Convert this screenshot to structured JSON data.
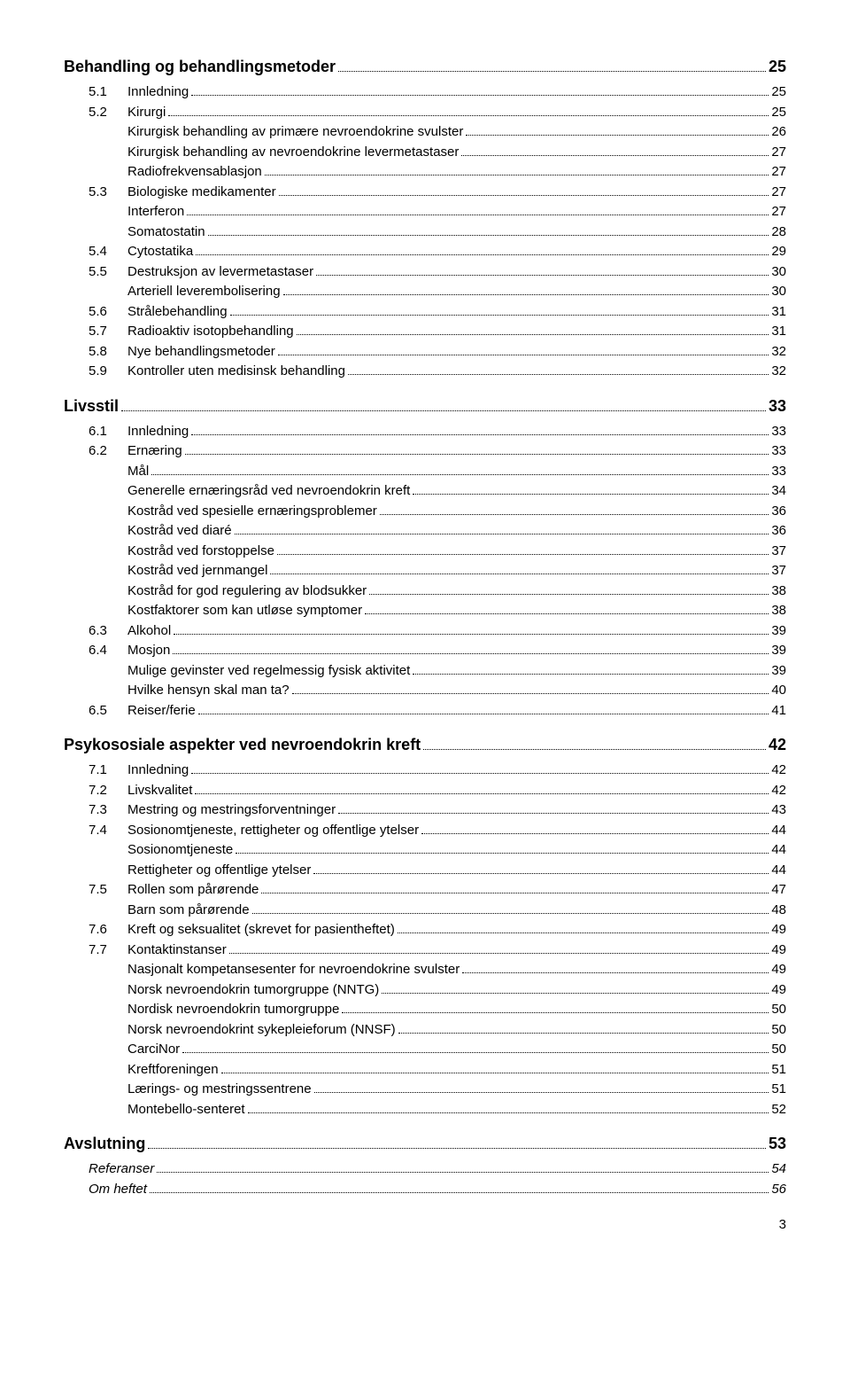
{
  "toc": [
    {
      "level": "h1",
      "text": "Behandling og behandlingsmetoder",
      "page": "25"
    },
    {
      "level": "h2",
      "num": "5.1",
      "text": "Innledning",
      "page": "25"
    },
    {
      "level": "h2",
      "num": "5.2",
      "text": "Kirurgi",
      "page": "25"
    },
    {
      "level": "h3",
      "text": "Kirurgisk behandling av primære nevroendokrine svulster",
      "page": "26"
    },
    {
      "level": "h3",
      "text": "Kirurgisk behandling av nevroendokrine levermetastaser",
      "page": "27"
    },
    {
      "level": "h3",
      "text": "Radiofrekvensablasjon",
      "page": "27"
    },
    {
      "level": "h2",
      "num": "5.3",
      "text": "Biologiske medikamenter",
      "page": "27"
    },
    {
      "level": "h3",
      "text": "Interferon",
      "page": "27"
    },
    {
      "level": "h3",
      "text": "Somatostatin",
      "page": "28"
    },
    {
      "level": "h2",
      "num": "5.4",
      "text": "Cytostatika",
      "page": "29"
    },
    {
      "level": "h2",
      "num": "5.5",
      "text": "Destruksjon av levermetastaser",
      "page": "30"
    },
    {
      "level": "h3",
      "text": "Arteriell leverembolisering",
      "page": "30"
    },
    {
      "level": "h2",
      "num": "5.6",
      "text": "Strålebehandling",
      "page": "31"
    },
    {
      "level": "h2",
      "num": "5.7",
      "text": "Radioaktiv isotopbehandling",
      "page": "31"
    },
    {
      "level": "h2",
      "num": "5.8",
      "text": "Nye behandlingsmetoder",
      "page": "32"
    },
    {
      "level": "h2",
      "num": "5.9",
      "text": "Kontroller uten medisinsk behandling",
      "page": "32"
    },
    {
      "level": "h1",
      "text": "Livsstil",
      "page": "33"
    },
    {
      "level": "h2",
      "num": "6.1",
      "text": "Innledning",
      "page": "33"
    },
    {
      "level": "h2",
      "num": "6.2",
      "text": "Ernæring",
      "page": "33"
    },
    {
      "level": "h3",
      "text": "Mål",
      "page": "33"
    },
    {
      "level": "h3",
      "text": "Generelle ernæringsråd ved nevroendokrin kreft",
      "page": "34"
    },
    {
      "level": "h3",
      "text": "Kostråd ved spesielle ernæringsproblemer",
      "page": "36"
    },
    {
      "level": "h3",
      "text": "Kostråd ved diaré",
      "page": "36"
    },
    {
      "level": "h3",
      "text": "Kostråd ved forstoppelse",
      "page": "37"
    },
    {
      "level": "h3",
      "text": "Kostråd ved jernmangel",
      "page": "37"
    },
    {
      "level": "h3",
      "text": "Kostråd for god regulering av blodsukker",
      "page": "38"
    },
    {
      "level": "h3",
      "text": "Kostfaktorer som kan utløse symptomer",
      "page": "38"
    },
    {
      "level": "h2",
      "num": "6.3",
      "text": "Alkohol",
      "page": "39"
    },
    {
      "level": "h2",
      "num": "6.4",
      "text": "Mosjon",
      "page": "39"
    },
    {
      "level": "h3",
      "text": "Mulige gevinster ved regelmessig fysisk aktivitet",
      "page": "39"
    },
    {
      "level": "h3",
      "text": "Hvilke hensyn skal man ta?",
      "page": "40"
    },
    {
      "level": "h2",
      "num": "6.5",
      "text": "Reiser/ferie",
      "page": "41"
    },
    {
      "level": "h1",
      "text": "Psykososiale aspekter ved nevroendokrin kreft",
      "page": "42"
    },
    {
      "level": "h2",
      "num": "7.1",
      "text": "Innledning",
      "page": "42"
    },
    {
      "level": "h2",
      "num": "7.2",
      "text": "Livskvalitet",
      "page": "42"
    },
    {
      "level": "h2",
      "num": "7.3",
      "text": "Mestring og mestringsforventninger",
      "page": "43"
    },
    {
      "level": "h2",
      "num": "7.4",
      "text": "Sosionomtjeneste, rettigheter og offentlige ytelser",
      "page": "44"
    },
    {
      "level": "h3",
      "text": "Sosionomtjeneste",
      "page": "44"
    },
    {
      "level": "h3",
      "text": "Rettigheter og offentlige ytelser",
      "page": "44"
    },
    {
      "level": "h2",
      "num": "7.5",
      "text": "Rollen som pårørende",
      "page": "47"
    },
    {
      "level": "h3",
      "text": "Barn som pårørende",
      "page": "48"
    },
    {
      "level": "h2",
      "num": "7.6",
      "text": "Kreft og seksualitet (skrevet for pasientheftet)",
      "page": "49"
    },
    {
      "level": "h2",
      "num": "7.7",
      "text": "Kontaktinstanser",
      "page": "49"
    },
    {
      "level": "h3",
      "text": "Nasjonalt kompetansesenter for nevroendokrine svulster",
      "page": "49"
    },
    {
      "level": "h3",
      "text": "Norsk nevroendokrin tumorgruppe (NNTG)",
      "page": "49"
    },
    {
      "level": "h3",
      "text": "Nordisk nevroendokrin tumorgruppe",
      "page": "50"
    },
    {
      "level": "h3",
      "text": "Norsk nevroendokrint sykepleieforum (NNSF)",
      "page": "50"
    },
    {
      "level": "h3",
      "text": "CarciNor",
      "page": "50"
    },
    {
      "level": "h3",
      "text": "Kreftforeningen",
      "page": "51"
    },
    {
      "level": "h3",
      "text": "Lærings- og mestringssentrene",
      "page": "51"
    },
    {
      "level": "h3",
      "text": "Montebello-senteret",
      "page": "52"
    },
    {
      "level": "h1",
      "text": "Avslutning",
      "page": "53"
    },
    {
      "level": "ref",
      "text": "Referanser",
      "page": "54"
    },
    {
      "level": "ref",
      "text": "Om heftet",
      "page": "56"
    }
  ],
  "page_number": "3"
}
